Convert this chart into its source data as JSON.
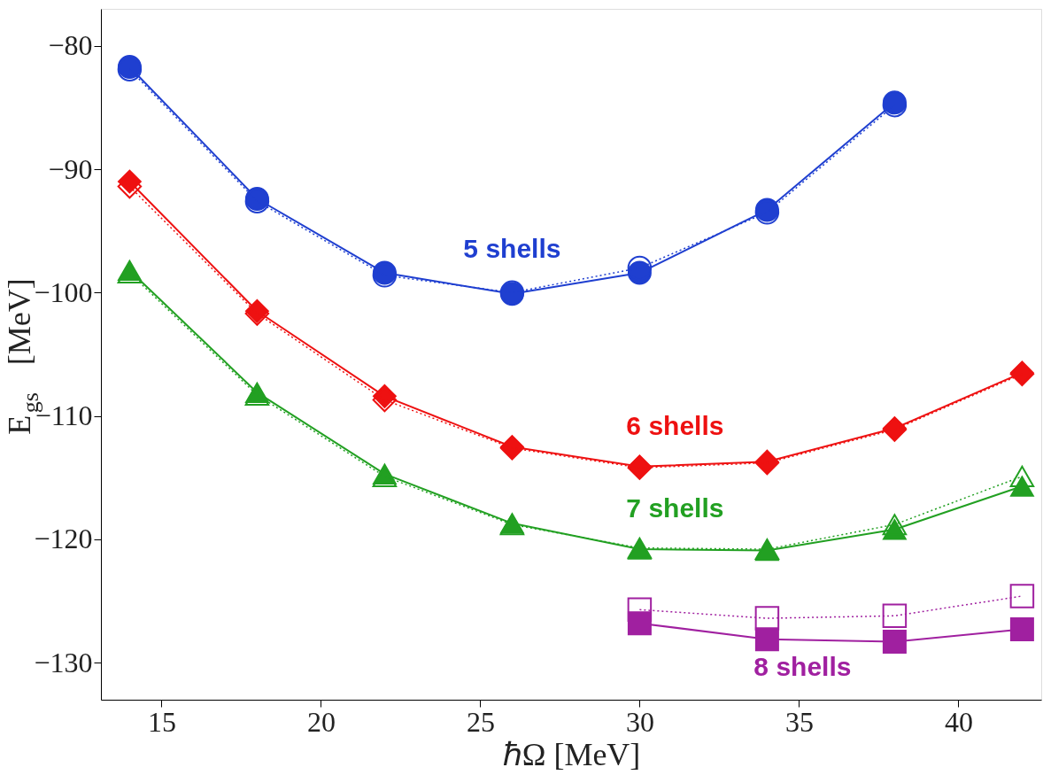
{
  "chart_data": {
    "type": "line",
    "xlabel": "ℏΩ  [MeV]",
    "ylabel": "E$_{gs}$  [MeV]",
    "x": [
      14,
      18,
      22,
      26,
      30,
      34,
      38,
      42
    ],
    "xlim": [
      13.1,
      42.6
    ],
    "ylim": [
      -133,
      -77
    ],
    "xticks": [
      15,
      20,
      25,
      30,
      35,
      40
    ],
    "yticks": [
      -130,
      -120,
      -110,
      -100,
      -90,
      -80
    ],
    "grid": false,
    "line_style": "solid",
    "series": [
      {
        "name": "5 shells",
        "color": "#1f3fd0",
        "marker": "circle",
        "values": [
          -81.7,
          -92.4,
          -98.4,
          -100.1,
          -98.4,
          -93.3,
          -84.6,
          null
        ]
      },
      {
        "name": "6 shells",
        "color": "#ee1111",
        "marker": "diamond",
        "values": [
          -91.0,
          -101.5,
          -108.4,
          -112.5,
          -114.1,
          -113.7,
          -111.0,
          -106.5
        ]
      },
      {
        "name": "7 shells",
        "color": "#22a022",
        "marker": "triangle",
        "values": [
          -98.2,
          -108.1,
          -114.7,
          -118.7,
          -120.8,
          -120.9,
          -119.2,
          -115.7
        ]
      },
      {
        "name": "8 shells",
        "color": "#a020a0",
        "marker": "square",
        "values": [
          null,
          null,
          null,
          null,
          -126.8,
          -128.1,
          -128.3,
          -127.3
        ]
      },
      {
        "color": "#1f3fd0",
        "marker": "circle",
        "line_style": "dotted",
        "values": [
          -81.9,
          -92.6,
          -98.6,
          -100.0,
          -98.0,
          -93.5,
          -84.8,
          null
        ]
      },
      {
        "color": "#ee1111",
        "marker": "diamond",
        "line_style": "dotted",
        "values": [
          -91.4,
          -101.7,
          -108.7,
          -112.6,
          -114.2,
          -113.8,
          -111.1,
          -106.6
        ]
      },
      {
        "color": "#22a022",
        "marker": "triangle",
        "line_style": "dotted",
        "values": [
          -98.4,
          -108.3,
          -114.9,
          -118.8,
          -120.7,
          -120.8,
          -118.8,
          -114.9
        ]
      },
      {
        "color": "#a020a0",
        "marker": "square",
        "line_style": "dotted",
        "values": [
          null,
          null,
          null,
          null,
          -125.7,
          -126.4,
          -126.2,
          -124.6
        ]
      }
    ]
  }
}
